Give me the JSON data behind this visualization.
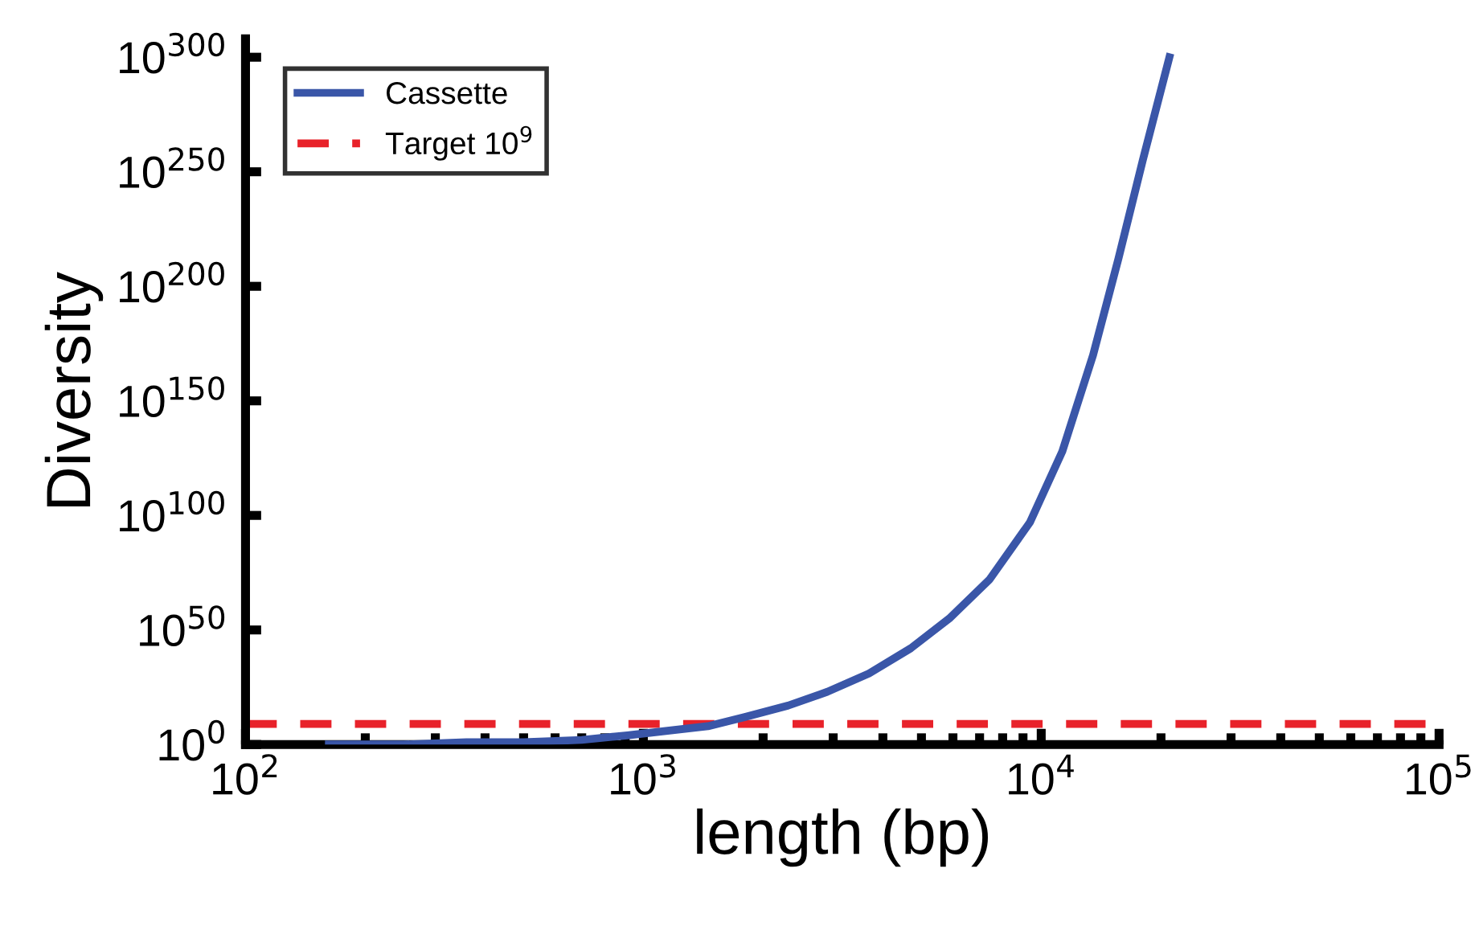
{
  "chart_data": {
    "type": "line",
    "xlabel": "length (bp)",
    "ylabel": "Diversity",
    "log": "xy",
    "x": [
      162,
      250,
      359,
      500,
      700,
      912,
      1150,
      1453,
      1800,
      2312,
      2900,
      3690,
      4700,
      5875,
      7413,
      9370,
      11300,
      13500,
      15630,
      18000,
      21000
    ],
    "series": [
      {
        "name": "Cassette",
        "color": "#3a56a8",
        "values": [
          1,
          1,
          10.0,
          10.0,
          100.0,
          10000.0,
          1000000.0,
          100000000.0,
          1000000000000.0,
          1e+17,
          1e+23,
          1e+31,
          1e+42,
          1e+55,
          1e+72,
          1e+97,
          1e+128,
          1e+170,
          1e+212,
          1e+255,
          1e+300
        ]
      }
    ],
    "ref_lines": [
      {
        "axis": "y",
        "value": 1000000000.0,
        "label": "Target 10$^{9}$",
        "color": "#e8222a",
        "line_style": "dashed"
      }
    ],
    "xlim": [
      100,
      100000
    ],
    "ylim": [
      1,
      1e+308
    ],
    "xticks": [
      {
        "value": 100,
        "label": "10$^{2}$"
      },
      {
        "value": 1000,
        "label": "10$^{3}$"
      },
      {
        "value": 10000,
        "label": "10$^{4}$"
      },
      {
        "value": 100000,
        "label": "10$^{5}$"
      }
    ],
    "yticks": [
      {
        "value": 1,
        "label": "10$^{0}$"
      },
      {
        "value": 1e+50,
        "label": "10$^{50}$"
      },
      {
        "value": 1e+100,
        "label": "10$^{100}$"
      },
      {
        "value": 1e+150,
        "label": "10$^{150}$"
      },
      {
        "value": 1e+200,
        "label": "10$^{200}$"
      },
      {
        "value": 1e+250,
        "label": "10$^{250}$"
      },
      {
        "value": 1e+300,
        "label": "10$^{300}$"
      }
    ],
    "legend": "top left",
    "grid": false,
    "line_style": "solid",
    "marker": "none"
  }
}
